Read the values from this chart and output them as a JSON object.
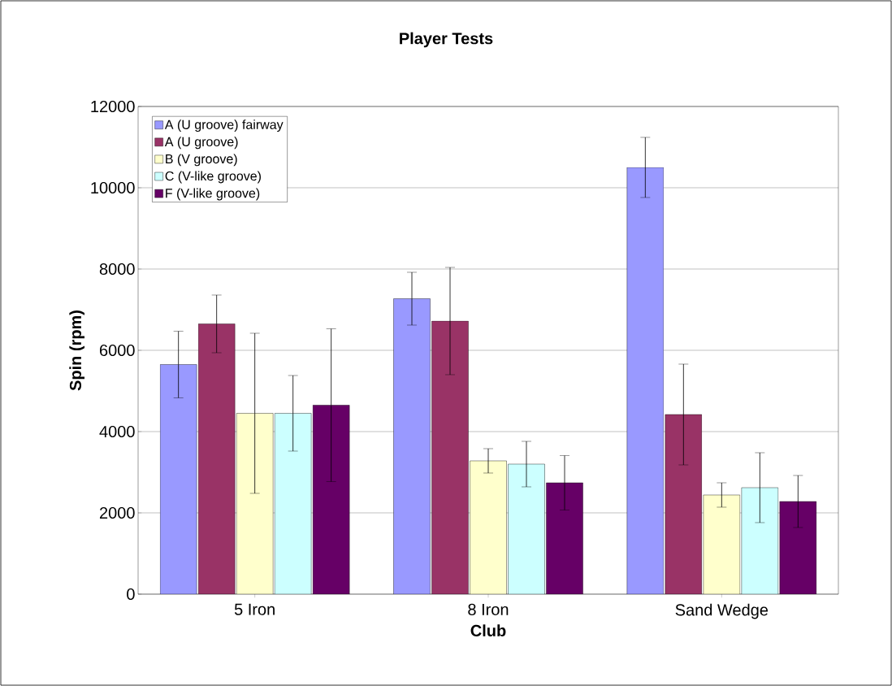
{
  "chart_data": {
    "type": "bar",
    "title": "Player Tests",
    "xlabel": "Club",
    "ylabel": "Spin (rpm)",
    "categories": [
      "5 Iron",
      "8 Iron",
      "Sand Wedge"
    ],
    "series": [
      {
        "name": "A (U groove) fairway",
        "color": "#9999ff",
        "values": [
          5650,
          7270,
          10500
        ],
        "errors": [
          820,
          650,
          740
        ]
      },
      {
        "name": "A (U groove)",
        "color": "#993366",
        "values": [
          6650,
          6720,
          4420
        ],
        "errors": [
          710,
          1320,
          1240
        ]
      },
      {
        "name": "B (V groove)",
        "color": "#ffffcc",
        "values": [
          4450,
          3280,
          2440
        ],
        "errors": [
          1970,
          300,
          300
        ]
      },
      {
        "name": "C (V-like groove)",
        "color": "#ccffff",
        "values": [
          4450,
          3200,
          2620
        ],
        "errors": [
          930,
          560,
          860
        ]
      },
      {
        "name": "F (V-like groove)",
        "color": "#660066",
        "values": [
          4650,
          2740,
          2280
        ],
        "errors": [
          1880,
          670,
          640
        ]
      }
    ],
    "ylim": [
      0,
      12000
    ],
    "yticks": [
      0,
      2000,
      4000,
      6000,
      8000,
      10000,
      12000
    ],
    "grid": "y",
    "legend": "top left"
  }
}
